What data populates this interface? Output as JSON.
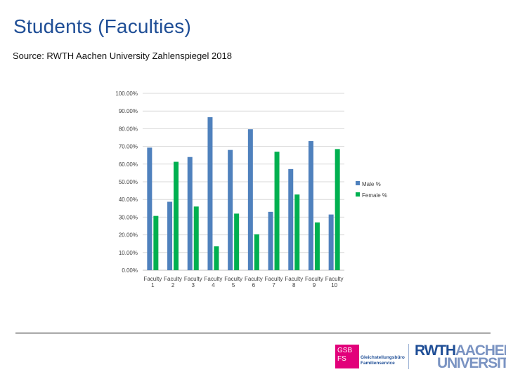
{
  "page": {
    "title": "Students (Faculties)",
    "subtitle": "Source: RWTH Aachen University Zahlenspiegel 2018"
  },
  "chart_data": {
    "type": "bar",
    "categories": [
      "Faculty 1",
      "Faculty 2",
      "Faculty 3",
      "Faculty 4",
      "Faculty 5",
      "Faculty 6",
      "Faculty 7",
      "Faculty 8",
      "Faculty 9",
      "Faculty 10"
    ],
    "category_lines": [
      [
        "Faculty",
        "1"
      ],
      [
        "Faculty",
        "2"
      ],
      [
        "Faculty",
        "3"
      ],
      [
        "Faculty",
        "4"
      ],
      [
        "Faculty",
        "5"
      ],
      [
        "Faculty",
        "6"
      ],
      [
        "Faculty",
        "7"
      ],
      [
        "Faculty",
        "8"
      ],
      [
        "Faculty",
        "9"
      ],
      [
        "Faculty",
        "10"
      ]
    ],
    "series": [
      {
        "name": "Male %",
        "color": "#4f81bd",
        "values": [
          69.3,
          38.7,
          64.0,
          86.5,
          68.0,
          79.7,
          33.0,
          57.2,
          73.0,
          31.5
        ]
      },
      {
        "name": "Female %",
        "color": "#00b050",
        "values": [
          30.7,
          61.3,
          36.0,
          13.5,
          32.0,
          20.3,
          67.0,
          42.8,
          27.0,
          68.5
        ]
      }
    ],
    "yticks": [
      "0.00%",
      "10.00%",
      "20.00%",
      "30.00%",
      "40.00%",
      "50.00%",
      "60.00%",
      "70.00%",
      "80.00%",
      "90.00%",
      "100.00%"
    ],
    "ylim": [
      0,
      100
    ],
    "grid": true,
    "legend": "right"
  },
  "logos": {
    "gsb": {
      "line1": "GSB",
      "line2": "FS",
      "text1": "Gleichstellungsbüro",
      "text2": "Familienservice",
      "color": "#e2007a"
    },
    "rwth": {
      "line1a": "RWTH",
      "line1b": "AACHEN",
      "line2": "UNIVERSITY",
      "color": "#1f4e96"
    }
  }
}
